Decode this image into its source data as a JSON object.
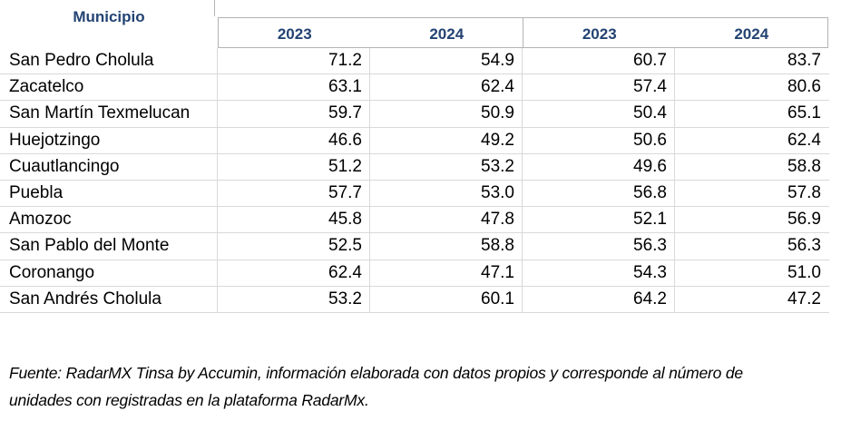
{
  "colors": {
    "accent": "#234373",
    "grid_light": "#d9d9d9",
    "grid_medium": "#b3b3b3",
    "text": "#000000",
    "bg": "#ffffff"
  },
  "table": {
    "municipio_header": "Municipio",
    "year_headers": [
      "2023",
      "2024",
      "2023",
      "2024"
    ],
    "rows": [
      {
        "name": "San Pedro Cholula",
        "values": [
          "71.2",
          "54.9",
          "60.7",
          "83.7"
        ]
      },
      {
        "name": "Zacatelco",
        "values": [
          "63.1",
          "62.4",
          "57.4",
          "80.6"
        ]
      },
      {
        "name": "San Martín Texmelucan",
        "values": [
          "59.7",
          "50.9",
          "50.4",
          "65.1"
        ]
      },
      {
        "name": "Huejotzingo",
        "values": [
          "46.6",
          "49.2",
          "50.6",
          "62.4"
        ]
      },
      {
        "name": "Cuautlancingo",
        "values": [
          "51.2",
          "53.2",
          "49.6",
          "58.8"
        ]
      },
      {
        "name": "Puebla",
        "values": [
          "57.7",
          "53.0",
          "56.8",
          "57.8"
        ]
      },
      {
        "name": "Amozoc",
        "values": [
          "45.8",
          "47.8",
          "52.1",
          "56.9"
        ]
      },
      {
        "name": "San Pablo del Monte",
        "values": [
          "52.5",
          "58.8",
          "56.3",
          "56.3"
        ]
      },
      {
        "name": "Coronango",
        "values": [
          "62.4",
          "47.1",
          "54.3",
          "51.0"
        ]
      },
      {
        "name": "San Andrés Cholula",
        "values": [
          "53.2",
          "60.1",
          "64.2",
          "47.2"
        ]
      }
    ]
  },
  "footer": {
    "line1": "Fuente: RadarMX Tinsa by Accumin, información elaborada con datos propios y corresponde al número de",
    "line2": "unidades con registradas en la plataforma RadarMx."
  },
  "chart_data": {
    "type": "table",
    "columns": [
      "Municipio",
      "2023",
      "2024",
      "2023",
      "2024"
    ],
    "rows": [
      [
        "San Pedro Cholula",
        71.2,
        54.9,
        60.7,
        83.7
      ],
      [
        "Zacatelco",
        63.1,
        62.4,
        57.4,
        80.6
      ],
      [
        "San Martín Texmelucan",
        59.7,
        50.9,
        50.4,
        65.1
      ],
      [
        "Huejotzingo",
        46.6,
        49.2,
        50.6,
        62.4
      ],
      [
        "Cuautlancingo",
        51.2,
        53.2,
        49.6,
        58.8
      ],
      [
        "Puebla",
        57.7,
        53.0,
        56.8,
        57.8
      ],
      [
        "Amozoc",
        45.8,
        47.8,
        52.1,
        56.9
      ],
      [
        "San Pablo del Monte",
        52.5,
        58.8,
        56.3,
        56.3
      ],
      [
        "Coronango",
        62.4,
        47.1,
        54.3,
        51.0
      ],
      [
        "San Andrés Cholula",
        53.2,
        60.1,
        64.2,
        47.2
      ]
    ],
    "title": "",
    "source_note": "Fuente: RadarMX Tinsa by Accumin, información elaborada con datos propios y corresponde al número de unidades con registradas en la plataforma RadarMx."
  }
}
